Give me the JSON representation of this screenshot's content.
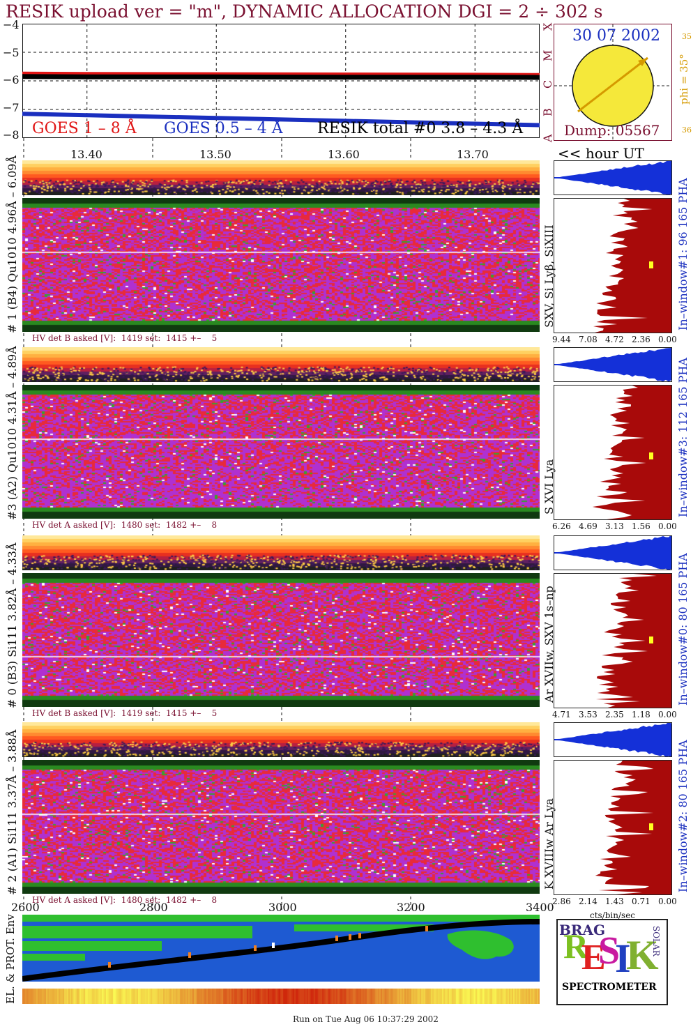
{
  "title": "RESIK upload ver = \"m\", DYNAMIC ALLOCATION  DGI =   2 ÷ 302 s",
  "goes": {
    "legend_red": "GOES 1 – 8 Å",
    "legend_blue": "GOES 0.5 – 4 Å",
    "legend_black": "RESIK total #0  3.8 – 4.3 Å",
    "ylim": [
      -8,
      -4
    ],
    "yticks": [
      "−4",
      "−5",
      "−6",
      "−7",
      "−8"
    ],
    "class_letters": [
      "X",
      "M",
      "C",
      "B",
      "A"
    ],
    "red_level": -5.8,
    "black_level": -5.85,
    "blue_start": -7.15,
    "blue_end": -7.55
  },
  "sun": {
    "date": "30 07 2002",
    "dump": "Dump: 05567",
    "phi": "phi = 35°",
    "n1": "35",
    "n2": "36"
  },
  "time_axis": {
    "ticks": [
      "13.40",
      "13.50",
      "13.60",
      "13.70"
    ],
    "unit": "<< hour UT"
  },
  "panels": [
    {
      "left_label": "# 1 (B4) Qu1010 4.96Å – 6.09Å",
      "line_label": "SXV, Si Lyβ, SiXIII",
      "hv": "HV det B asked [V]:  1419 set:  1415 +–    5",
      "window": "In–window#1:   96 165  PHA",
      "scale": [
        "9.44",
        "7.08",
        "4.72",
        "2.36",
        "0.00"
      ]
    },
    {
      "left_label": "#3 (A2) Qu1010  4.31Å – 4.89Å",
      "line_label": "S XVI Lya",
      "hv": "HV det A asked [V]:  1480 set:  1482 +–    8",
      "window": "In–window#3:  112 165  PHA",
      "scale": [
        "6.26",
        "4.69",
        "3.13",
        "1.56",
        "0.00"
      ]
    },
    {
      "left_label": "# 0 (B3) Si111  3.82Å – 4.33Å",
      "line_label": "Ar XVIIw, SXV 1s–np",
      "hv": "HV det B asked [V]:  1419 set:  1415 +–    5",
      "window": "In–window#0:   80 165  PHA",
      "scale": [
        "4.71",
        "3.53",
        "2.35",
        "1.18",
        "0.00"
      ]
    },
    {
      "left_label": "# 2 (A1) Si111  3.37Å – 3.88Å",
      "line_label": "K XVIIIw  Ar Lya",
      "hv": "HV det A asked [V]:  1480 set:  1482 +–    8",
      "window": "In–window#2:   80 165  PHA",
      "scale": [
        "2.86",
        "2.14",
        "1.43",
        "0.71",
        "0.00"
      ]
    }
  ],
  "bottom": {
    "x_ticks": [
      "2600",
      "2800",
      "3000",
      "3200",
      "3400"
    ],
    "cts_label": "cts/bin/sec",
    "map_label": "EL. & PROT. Env",
    "run_text": "Run on Tue Aug 06 10:37:29 2002"
  },
  "logo": {
    "spectrometer": "SPECTROMETER",
    "big": "RESIK",
    "bragg": "BRAG",
    "solar": "SOLAR"
  },
  "colors": {
    "title": "#7a1030",
    "goes_red": "#e01515",
    "goes_blue": "#1a2fbf",
    "histo": "#a80a0a",
    "pha": "#1430d8",
    "sun": "#f5e83a"
  },
  "chart_data": {
    "type": "line",
    "title": "RESIK upload ver = \"m\", DYNAMIC ALLOCATION  DGI =   2 ÷ 302 s",
    "xlabel": "<< hour UT",
    "ylabel": "",
    "ylim": [
      -8,
      -4
    ],
    "x": [
      13.35,
      13.4,
      13.5,
      13.6,
      13.7,
      13.75
    ],
    "series": [
      {
        "name": "GOES 1 – 8 Å",
        "values": [
          -5.75,
          -5.76,
          -5.77,
          -5.78,
          -5.79,
          -5.8
        ]
      },
      {
        "name": "GOES 0.5 – 4 Å",
        "values": [
          -7.15,
          -7.2,
          -7.3,
          -7.4,
          -7.5,
          -7.55
        ]
      },
      {
        "name": "RESIK total #0  3.8 – 4.3 Å",
        "values": [
          -5.85,
          -5.86,
          -5.86,
          -5.87,
          -5.87,
          -5.88
        ]
      }
    ]
  }
}
